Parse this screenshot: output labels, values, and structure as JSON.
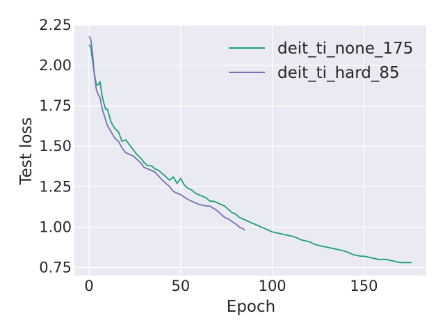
{
  "chart_data": {
    "type": "line",
    "title": "",
    "xlabel": "Epoch",
    "ylabel": "Test loss",
    "xlim": [
      -8,
      184
    ],
    "ylim": [
      0.7,
      2.25
    ],
    "xticks": [
      0,
      50,
      100,
      150
    ],
    "yticks": [
      0.75,
      1.0,
      1.25,
      1.5,
      1.75,
      2.0,
      2.25
    ],
    "ytick_labels": [
      "0.75",
      "1.00",
      "1.25",
      "1.50",
      "1.75",
      "2.00",
      "2.25"
    ],
    "grid": true,
    "legend_position": "top-right",
    "background": "#eaeaf2",
    "series": [
      {
        "name": "deit_ti_none_175",
        "color": "#1b9e77",
        "x": [
          0,
          1,
          2,
          3,
          4,
          5,
          6,
          7,
          8,
          9,
          10,
          12,
          14,
          16,
          18,
          20,
          22,
          24,
          26,
          28,
          30,
          32,
          34,
          36,
          38,
          40,
          42,
          44,
          46,
          48,
          50,
          52,
          54,
          56,
          58,
          60,
          62,
          64,
          66,
          68,
          70,
          72,
          74,
          76,
          78,
          80,
          82,
          84,
          86,
          88,
          90,
          92,
          94,
          96,
          98,
          100,
          104,
          108,
          112,
          116,
          120,
          124,
          128,
          132,
          136,
          140,
          144,
          148,
          150,
          154,
          158,
          162,
          166,
          170,
          174,
          176
        ],
        "y": [
          2.13,
          2.11,
          2.02,
          1.94,
          1.88,
          1.88,
          1.9,
          1.82,
          1.77,
          1.73,
          1.73,
          1.65,
          1.61,
          1.59,
          1.53,
          1.54,
          1.51,
          1.48,
          1.45,
          1.43,
          1.4,
          1.38,
          1.38,
          1.36,
          1.35,
          1.33,
          1.31,
          1.29,
          1.31,
          1.27,
          1.3,
          1.26,
          1.24,
          1.23,
          1.21,
          1.2,
          1.19,
          1.18,
          1.16,
          1.16,
          1.15,
          1.14,
          1.13,
          1.11,
          1.09,
          1.08,
          1.06,
          1.05,
          1.04,
          1.03,
          1.02,
          1.01,
          1.0,
          0.99,
          0.98,
          0.97,
          0.96,
          0.95,
          0.94,
          0.92,
          0.91,
          0.89,
          0.88,
          0.87,
          0.86,
          0.85,
          0.83,
          0.82,
          0.82,
          0.81,
          0.8,
          0.8,
          0.79,
          0.78,
          0.78,
          0.78
        ]
      },
      {
        "name": "deit_ti_hard_85",
        "color": "#7570b3",
        "x": [
          0,
          1,
          2,
          3,
          4,
          5,
          6,
          7,
          8,
          10,
          12,
          14,
          16,
          18,
          20,
          24,
          28,
          30,
          34,
          36,
          40,
          44,
          46,
          50,
          54,
          56,
          60,
          64,
          66,
          70,
          74,
          76,
          80,
          82,
          84,
          85
        ],
        "y": [
          2.18,
          2.16,
          2.06,
          1.93,
          1.85,
          1.82,
          1.8,
          1.74,
          1.7,
          1.63,
          1.59,
          1.55,
          1.53,
          1.49,
          1.46,
          1.44,
          1.4,
          1.37,
          1.35,
          1.34,
          1.29,
          1.25,
          1.22,
          1.2,
          1.17,
          1.16,
          1.14,
          1.13,
          1.13,
          1.1,
          1.06,
          1.05,
          1.02,
          1.0,
          0.99,
          0.98
        ]
      }
    ]
  }
}
